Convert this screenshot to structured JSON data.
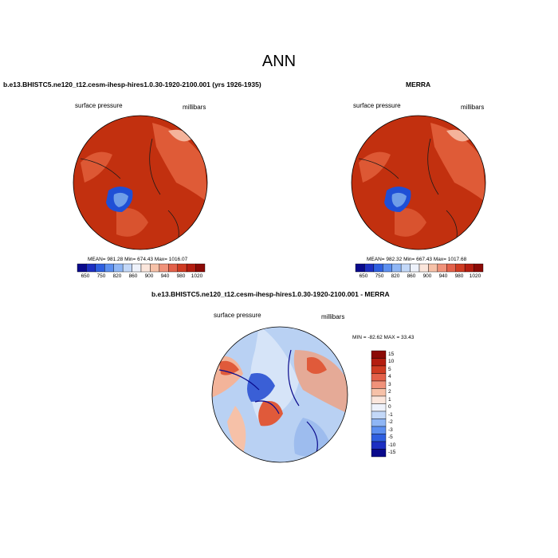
{
  "figure": {
    "title": "ANN"
  },
  "panels": {
    "model": {
      "title": "b.e13.BHISTC5.ne120_t12.cesm-ihesp-hires1.0.30-1920-2100.001 (yrs 1926-1935)",
      "left_label": "surface pressure",
      "right_label": "millibars",
      "stats": "MEAN= 981.28  Min= 674.43  Max= 1016.07"
    },
    "obs": {
      "title": "MERRA",
      "left_label": "surface pressure",
      "right_label": "millibars",
      "stats": "MEAN= 982.32  Min= 667.43  Max= 1017.68"
    },
    "diff": {
      "title": "b.e13.BHISTC5.ne120_t12.cesm-ihesp-hires1.0.30-1920-2100.001 - MERRA",
      "left_label": "surface pressure",
      "right_label": "millibars",
      "stats": "MIN = -82.62 MAX = 33.43"
    }
  },
  "colorbars": {
    "absolute": {
      "labels": [
        "650",
        "750",
        "820",
        "860",
        "900",
        "940",
        "980",
        "1020"
      ],
      "colors": [
        "#0a0a8c",
        "#1d2fc2",
        "#2f5fe0",
        "#5c8ff0",
        "#8fb6f5",
        "#c3d8f8",
        "#eef2fb",
        "#fbe6dc",
        "#f6c1a8",
        "#f0927a",
        "#e3614a",
        "#cf3b22",
        "#b41d10",
        "#8b0a06"
      ]
    },
    "difference": {
      "labels": [
        "15",
        "10",
        "5",
        "4",
        "3",
        "2",
        "1",
        "0",
        "-1",
        "-2",
        "-3",
        "-5",
        "-10",
        "-15"
      ],
      "colors": [
        "#8b0a06",
        "#b41d10",
        "#cf3b22",
        "#e3614a",
        "#f0927a",
        "#f6c1a8",
        "#fbe6dc",
        "#eef2fb",
        "#c3d8f8",
        "#8fb6f5",
        "#5c8ff0",
        "#2f5fe0",
        "#1d2fc2",
        "#0a0a8c"
      ]
    }
  },
  "map_colors": {
    "ocean_abs": "#c2300f",
    "land_high": "#e86a45",
    "ice_low": "#1f4fd6",
    "diff_base": "#b9d1f3",
    "diff_pos": "#e05a3a",
    "diff_neg": "#2a46c8",
    "coast": "#1a1a1a"
  }
}
